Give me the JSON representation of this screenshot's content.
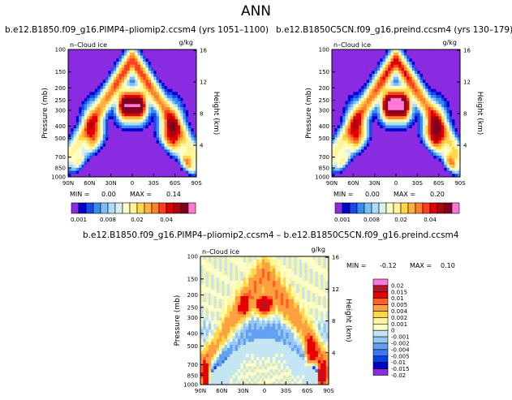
{
  "figure": {
    "title": "ANN"
  },
  "colors": {
    "cbar_upper": [
      "#8a2be2",
      "#0000d0",
      "#1848e8",
      "#3a8cf0",
      "#79bff6",
      "#aedcf2",
      "#d8eff5",
      "#ffffc8",
      "#fff59d",
      "#ffd84a",
      "#ffb040",
      "#ff8030",
      "#ff4020",
      "#e00000",
      "#b00010",
      "#800020",
      "#ff78d8"
    ],
    "cbar_diff": [
      "#8a2be2",
      "#0000c8",
      "#0a3cf0",
      "#3c78f0",
      "#64a0f0",
      "#96c8f2",
      "#c4e6f2",
      "#ffffc8",
      "#fff59d",
      "#ffd84a",
      "#ffa040",
      "#ff6028",
      "#e60000",
      "#b41428",
      "#ff78d8"
    ]
  },
  "chart_data": [
    {
      "type": "heatmap",
      "panel": "pliomip2",
      "title": "b.e12.B1850.f09_g16.PIMP4–pliomip2.ccsm4 (yrs 1051–1100)",
      "variable": "n–Cloud ice",
      "units": "g/kg",
      "xlabel": "",
      "ylabel": "Pressure (mb)",
      "y2label": "Height (km)",
      "xticks": [
        "90N",
        "60N",
        "30N",
        "0",
        "30S",
        "60S",
        "90S"
      ],
      "yticks": [
        "100",
        "150",
        "200",
        "250",
        "300",
        "400",
        "500",
        "700",
        "850",
        "1000"
      ],
      "y2ticks": [
        "16",
        "12",
        "8",
        "4"
      ],
      "xlim": [
        90,
        -90
      ],
      "ylim": [
        1000,
        100
      ],
      "min_label": "MIN =",
      "min_value": "0.00",
      "max_label": "MAX =",
      "max_value": "0.14",
      "colorbar_labels": [
        "0.001",
        "0.008",
        "0.02",
        "0.04"
      ],
      "colorbar_bins": 17
    },
    {
      "type": "heatmap",
      "panel": "preind",
      "title": "b.e12.B1850C5CN.f09_g16.preind.ccsm4 (yrs 130–179)",
      "variable": "n–Cloud ice",
      "units": "g/kg",
      "xlabel": "",
      "ylabel": "Pressure (mb)",
      "y2label": "Height (km)",
      "xticks": [
        "90N",
        "60N",
        "30N",
        "0",
        "30S",
        "60S",
        "90S"
      ],
      "yticks": [
        "100",
        "150",
        "200",
        "250",
        "300",
        "400",
        "500",
        "700",
        "850",
        "1000"
      ],
      "y2ticks": [
        "16",
        "12",
        "8",
        "4"
      ],
      "xlim": [
        90,
        -90
      ],
      "ylim": [
        1000,
        100
      ],
      "min_label": "MIN =",
      "min_value": "0.00",
      "max_label": "MAX =",
      "max_value": "0.20",
      "colorbar_labels": [
        "0.001",
        "0.008",
        "0.02",
        "0.04"
      ],
      "colorbar_bins": 17
    },
    {
      "type": "heatmap",
      "panel": "difference",
      "title": "b.e12.B1850.f09_g16.PIMP4–pliomip2.ccsm4 – b.e12.B1850C5CN.f09_g16.preind.ccsm4",
      "variable": "n–Cloud ice",
      "units": "g/kg",
      "xlabel": "",
      "ylabel": "Pressure (mb)",
      "y2label": "Height (km)",
      "xticks": [
        "90N",
        "60N",
        "30N",
        "0",
        "30S",
        "60S",
        "90S"
      ],
      "yticks": [
        "100",
        "150",
        "200",
        "250",
        "300",
        "400",
        "500",
        "700",
        "850",
        "1000"
      ],
      "y2ticks": [
        "16",
        "12",
        "8",
        "4"
      ],
      "xlim": [
        90,
        -90
      ],
      "ylim": [
        1000,
        100
      ],
      "min_label": "MIN =",
      "min_value": "-0.12",
      "max_label": "MAX =",
      "max_value": "0.10",
      "colorbar_labels": [
        "0.02",
        "0.015",
        "0.01",
        "0.005",
        "0.004",
        "0.002",
        "0.001",
        "0",
        "-0.001",
        "-0.002",
        "-0.004",
        "-0.005",
        "-0.01",
        "-0.015",
        "-0.02"
      ],
      "colorbar_bins": 15
    }
  ]
}
